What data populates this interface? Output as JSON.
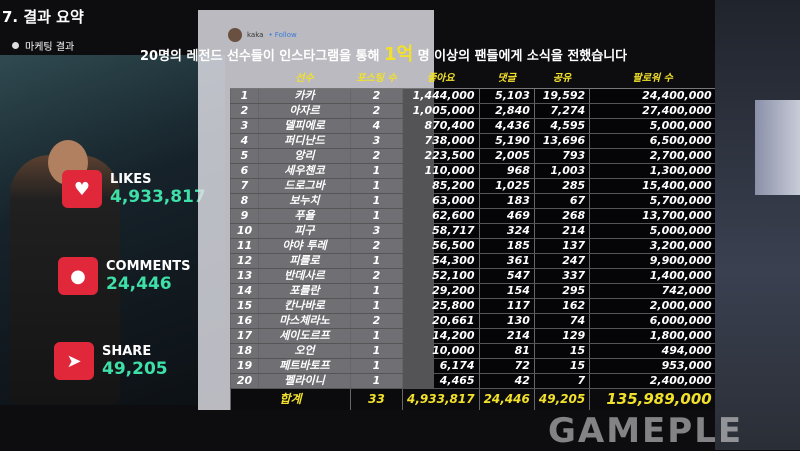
{
  "slide": {
    "section_title": "7. 결과 요약",
    "subtitle": "마케팅 결과",
    "headline_pre": "20명의 레전드 선수들이 인스타그램을 통해",
    "headline_highlight": "1억",
    "headline_post": "명 이상의 팬들에게 소식을 전했습니다"
  },
  "instagram_overlay": {
    "username": "kaka",
    "follow": "• Follow"
  },
  "stats": [
    {
      "label": "LIKES",
      "value": "4,933,817",
      "icon": "heart-icon"
    },
    {
      "label": "COMMENTS",
      "value": "24,446",
      "icon": "comment-icon"
    },
    {
      "label": "SHARE",
      "value": "49,205",
      "icon": "share-icon"
    }
  ],
  "table": {
    "headers": [
      "",
      "선수",
      "포스팅 수",
      "좋아요",
      "댓글",
      "공유",
      "팔로워 수"
    ],
    "rows": [
      [
        "1",
        "카카",
        "2",
        "1,444,000",
        "5,103",
        "19,592",
        "24,400,000"
      ],
      [
        "2",
        "아자르",
        "2",
        "1,005,000",
        "2,840",
        "7,274",
        "27,400,000"
      ],
      [
        "3",
        "델피에로",
        "4",
        "870,400",
        "4,436",
        "4,595",
        "5,000,000"
      ],
      [
        "4",
        "퍼디난드",
        "3",
        "738,000",
        "5,190",
        "13,696",
        "6,500,000"
      ],
      [
        "5",
        "앙리",
        "2",
        "223,500",
        "2,005",
        "793",
        "2,700,000"
      ],
      [
        "6",
        "세우첸코",
        "1",
        "110,000",
        "968",
        "1,003",
        "1,300,000"
      ],
      [
        "7",
        "드로그바",
        "1",
        "85,200",
        "1,025",
        "285",
        "15,400,000"
      ],
      [
        "8",
        "보누치",
        "1",
        "63,000",
        "183",
        "67",
        "5,700,000"
      ],
      [
        "9",
        "푸욜",
        "1",
        "62,600",
        "469",
        "268",
        "13,700,000"
      ],
      [
        "10",
        "피구",
        "3",
        "58,717",
        "324",
        "214",
        "5,000,000"
      ],
      [
        "11",
        "야야 투레",
        "2",
        "56,500",
        "185",
        "137",
        "3,200,000"
      ],
      [
        "12",
        "피를로",
        "1",
        "54,300",
        "361",
        "247",
        "9,900,000"
      ],
      [
        "13",
        "반데사르",
        "2",
        "52,100",
        "547",
        "337",
        "1,400,000"
      ],
      [
        "14",
        "포를란",
        "1",
        "29,200",
        "154",
        "295",
        "742,000"
      ],
      [
        "15",
        "칸나바로",
        "1",
        "25,800",
        "117",
        "162",
        "2,000,000"
      ],
      [
        "16",
        "마스체라노",
        "2",
        "20,661",
        "130",
        "74",
        "6,000,000"
      ],
      [
        "17",
        "세이도르프",
        "1",
        "14,200",
        "214",
        "129",
        "1,800,000"
      ],
      [
        "18",
        "오언",
        "1",
        "10,000",
        "81",
        "15",
        "494,000"
      ],
      [
        "19",
        "페트바토프",
        "1",
        "6,174",
        "72",
        "15",
        "953,000"
      ],
      [
        "20",
        "펠라이니",
        "1",
        "4,465",
        "42",
        "7",
        "2,400,000"
      ]
    ],
    "total": [
      "합계",
      "33",
      "4,933,817",
      "24,446",
      "49,205",
      "135,989,000"
    ]
  },
  "watermark": "GAMEPLE",
  "colors": {
    "highlight": "#f2e12b",
    "stat_value": "#3ee0a8",
    "icon_bg": "#e0283a"
  }
}
